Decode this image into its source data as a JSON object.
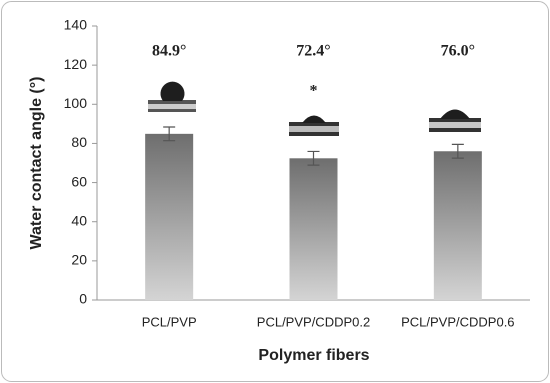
{
  "chart_data": {
    "type": "bar",
    "x_label": "Polymer fibers",
    "y_label": "Water contact angle (°)",
    "categories": [
      "PCL/PVP",
      "PCL/PVP/CDDP0.2",
      "PCL/PVP/CDDP0.6"
    ],
    "values": [
      84.9,
      72.4,
      76.0
    ],
    "value_labels": [
      "84.9°",
      "72.4°",
      "76.0°"
    ],
    "errors": [
      3.5,
      3.5,
      3.5
    ],
    "annotation": "*",
    "ylim": [
      0,
      140
    ],
    "yticks": [
      0,
      20,
      40,
      60,
      80,
      100,
      120,
      140
    ],
    "grid": false,
    "color": "#7a7a7a"
  }
}
